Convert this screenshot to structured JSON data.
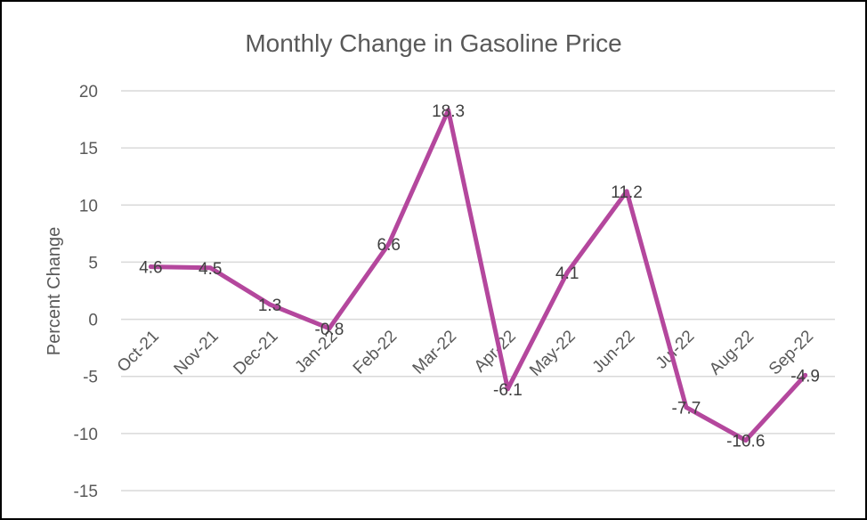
{
  "chart_data": {
    "type": "line",
    "title": "Monthly Change in Gasoline Price",
    "xlabel": "",
    "ylabel": "Percent Change",
    "ylim": [
      -15,
      20
    ],
    "y_ticks": [
      "20",
      "15",
      "10",
      "5",
      "0",
      "-5",
      "-10",
      "-15"
    ],
    "grid": true,
    "legend": "none",
    "categories": [
      "Oct-21",
      "Nov-21",
      "Dec-21",
      "Jan-22",
      "Feb-22",
      "Mar-22",
      "Apr-22",
      "May-22",
      "Jun-22",
      "Jul-22",
      "Aug-22",
      "Sep-22"
    ],
    "series": [
      {
        "color": "#b4479d",
        "values": [
          4.6,
          4.5,
          1.3,
          -0.8,
          6.6,
          18.3,
          -6.1,
          4.1,
          11.2,
          -7.7,
          -10.6,
          -4.9
        ],
        "labels": [
          "4.6",
          "4.5",
          "1.3",
          "-0.8",
          "6.6",
          "18.3",
          "-6.1",
          "4.1",
          "11.2",
          "-7.7",
          "-10.6",
          "-4.9"
        ]
      }
    ]
  }
}
